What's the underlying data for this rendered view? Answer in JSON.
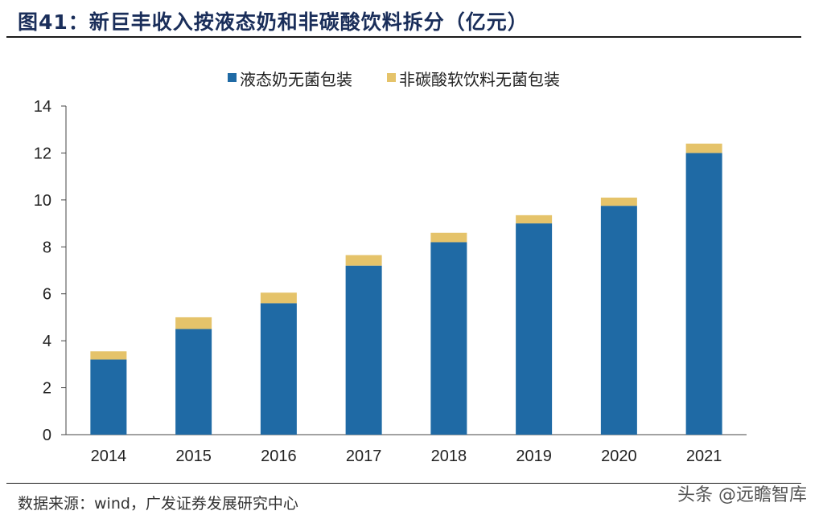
{
  "header": {
    "title": "图41：新巨丰收入按液态奶和非碳酸饮料拆分（亿元）"
  },
  "footer": {
    "source": "数据来源：wind，广发证券发展研究中心",
    "watermark": "头条 @远瞻智库"
  },
  "chart_data": {
    "type": "bar",
    "stacked": true,
    "categories": [
      "2014",
      "2015",
      "2016",
      "2017",
      "2018",
      "2019",
      "2020",
      "2021"
    ],
    "series": [
      {
        "name": "液态奶无菌包装",
        "color": "#1f6aa5",
        "values": [
          3.2,
          4.5,
          5.6,
          7.2,
          8.2,
          9.0,
          9.75,
          12.0
        ]
      },
      {
        "name": "非碳酸软饮料无菌包装",
        "color": "#e5c36a",
        "values": [
          0.35,
          0.5,
          0.45,
          0.45,
          0.4,
          0.35,
          0.35,
          0.4
        ]
      }
    ],
    "ylim": [
      0,
      14
    ],
    "yticks": [
      "0",
      "2",
      "4",
      "6",
      "8",
      "10",
      "12",
      "14"
    ],
    "xlabel": "",
    "ylabel": "",
    "grid": false,
    "legend_position": "top-center"
  }
}
